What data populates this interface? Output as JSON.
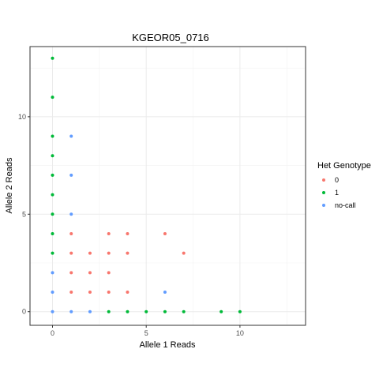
{
  "chart_data": {
    "type": "scatter",
    "title": "KGEOR05_0716",
    "xlabel": "Allele 1 Reads",
    "ylabel": "Allele 2 Reads",
    "xlim": [
      -1.2,
      13.5
    ],
    "ylim": [
      -0.7,
      13.6
    ],
    "xticks": [
      0,
      5,
      10
    ],
    "yticks": [
      0,
      5,
      10
    ],
    "grid": true,
    "legend": {
      "title": "Het Genotype",
      "position": "right"
    },
    "series": [
      {
        "name": "0",
        "color": "#F8766D",
        "points": [
          [
            1,
            4
          ],
          [
            3,
            4
          ],
          [
            4,
            4
          ],
          [
            6,
            4
          ],
          [
            1,
            3
          ],
          [
            2,
            3
          ],
          [
            3,
            3
          ],
          [
            4,
            3
          ],
          [
            7,
            3
          ],
          [
            1,
            2
          ],
          [
            2,
            2
          ],
          [
            3,
            2
          ],
          [
            1,
            1
          ],
          [
            2,
            1
          ],
          [
            3,
            1
          ],
          [
            4,
            1
          ]
        ]
      },
      {
        "name": "1",
        "color": "#00BA38",
        "points": [
          [
            0,
            13
          ],
          [
            0,
            11
          ],
          [
            0,
            9
          ],
          [
            0,
            8
          ],
          [
            0,
            7
          ],
          [
            0,
            6
          ],
          [
            0,
            5
          ],
          [
            0,
            4
          ],
          [
            0,
            3
          ],
          [
            3,
            0
          ],
          [
            4,
            0
          ],
          [
            5,
            0
          ],
          [
            6,
            0
          ],
          [
            7,
            0
          ],
          [
            9,
            0
          ],
          [
            10,
            0
          ]
        ]
      },
      {
        "name": "no-call",
        "color": "#619CFF",
        "points": [
          [
            1,
            9
          ],
          [
            1,
            7
          ],
          [
            1,
            5
          ],
          [
            0,
            2
          ],
          [
            0,
            1
          ],
          [
            6,
            1
          ],
          [
            0,
            0
          ],
          [
            1,
            0
          ],
          [
            2,
            0
          ]
        ]
      }
    ]
  }
}
